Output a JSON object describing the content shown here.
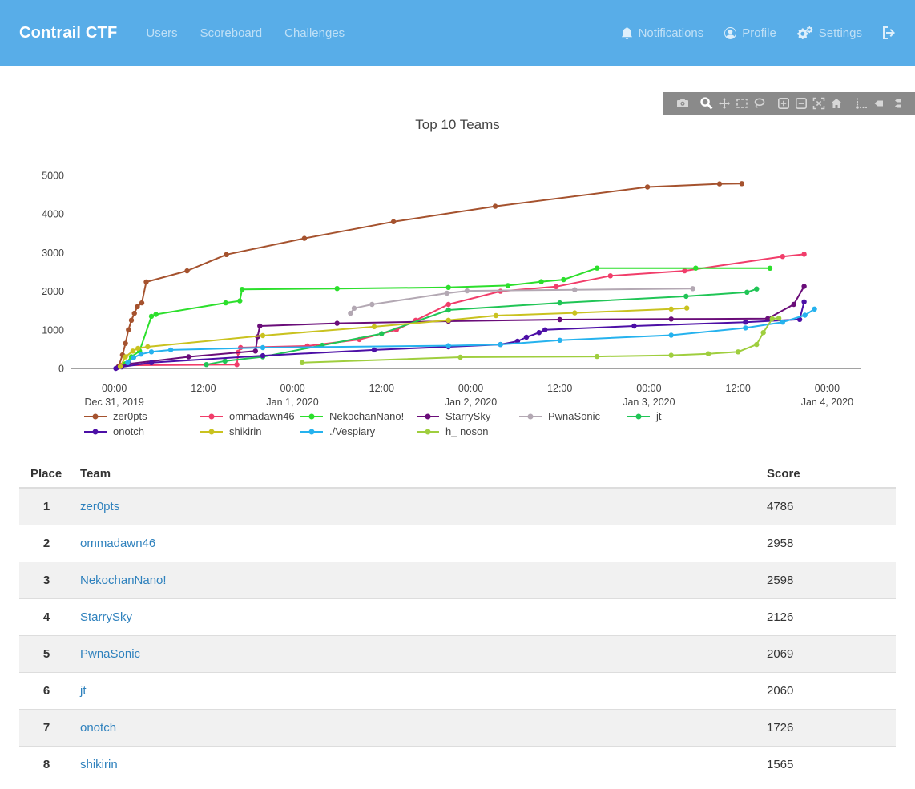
{
  "navbar": {
    "brand": "Contrail CTF",
    "bg_color": "#58ade8",
    "links": [
      {
        "label": "Users"
      },
      {
        "label": "Scoreboard"
      },
      {
        "label": "Challenges"
      }
    ],
    "right_items": [
      {
        "icon": "bell-icon",
        "label": "Notifications"
      },
      {
        "icon": "user-circle-icon",
        "label": "Profile"
      },
      {
        "icon": "gears-icon",
        "label": "Settings"
      },
      {
        "icon": "sign-out-icon",
        "label": ""
      }
    ]
  },
  "modebar": {
    "bg_color": "#8a8a8a",
    "icons": [
      "camera",
      "zoom",
      "pan",
      "box-select",
      "lasso",
      "zoom-in",
      "zoom-out",
      "autoscale",
      "reset-axes",
      "toggle-spikelines",
      "hover-closest",
      "hover-compare"
    ]
  },
  "chart_data": {
    "type": "line",
    "title": "Top 10 Teams",
    "xlabel": "",
    "ylabel": "",
    "x_unit": "hours since Dec 31, 2019 00:00",
    "xlim_hours": [
      -5.9,
      100.6
    ],
    "ylim": [
      0,
      5000
    ],
    "grid": false,
    "legend_position": "bottom",
    "y_ticks": [
      0,
      1000,
      2000,
      3000,
      4000,
      5000
    ],
    "x_ticks": [
      {
        "hour": 0,
        "time": "00:00",
        "date": "Dec 31, 2019"
      },
      {
        "hour": 12,
        "time": "12:00"
      },
      {
        "hour": 24,
        "time": "00:00",
        "date": "Jan 1, 2020"
      },
      {
        "hour": 36,
        "time": "12:00"
      },
      {
        "hour": 48,
        "time": "00:00",
        "date": "Jan 2, 2020"
      },
      {
        "hour": 60,
        "time": "12:00"
      },
      {
        "hour": 72,
        "time": "00:00",
        "date": "Jan 3, 2020"
      },
      {
        "hour": 84,
        "time": "12:00"
      },
      {
        "hour": 96,
        "time": "00:00",
        "date": "Jan 4, 2020"
      }
    ],
    "series": [
      {
        "name": "zer0pts",
        "color": "#a5522e",
        "final_score": 4786,
        "points": [
          [
            0.6,
            60
          ],
          [
            1.1,
            350
          ],
          [
            1.5,
            650
          ],
          [
            1.9,
            1000
          ],
          [
            2.3,
            1250
          ],
          [
            2.7,
            1430
          ],
          [
            3.1,
            1600
          ],
          [
            3.7,
            1700
          ],
          [
            4.3,
            2240
          ],
          [
            9.8,
            2530
          ],
          [
            15.1,
            2950
          ],
          [
            25.6,
            3370
          ],
          [
            37.6,
            3800
          ],
          [
            51.3,
            4200
          ],
          [
            71.8,
            4700
          ],
          [
            81.5,
            4780
          ],
          [
            84.5,
            4786
          ]
        ]
      },
      {
        "name": "ommadawn46",
        "color": "#f13d6a",
        "final_score": 2958,
        "points": [
          [
            1.0,
            80
          ],
          [
            16.5,
            100
          ],
          [
            16.7,
            420
          ],
          [
            17.0,
            540
          ],
          [
            26,
            580
          ],
          [
            33,
            750
          ],
          [
            38,
            1000
          ],
          [
            40.6,
            1250
          ],
          [
            45,
            1660
          ],
          [
            52,
            2000
          ],
          [
            59.5,
            2120
          ],
          [
            66.8,
            2400
          ],
          [
            76.8,
            2530
          ],
          [
            90,
            2900
          ],
          [
            92.9,
            2958
          ]
        ]
      },
      {
        "name": "NekochanNano!",
        "color": "#2cdf2c",
        "final_score": 2598,
        "points": [
          [
            1.5,
            120
          ],
          [
            2.3,
            300
          ],
          [
            3.4,
            450
          ],
          [
            5.0,
            1350
          ],
          [
            5.6,
            1400
          ],
          [
            15.0,
            1700
          ],
          [
            16.9,
            1750
          ],
          [
            17.2,
            2050
          ],
          [
            30,
            2070
          ],
          [
            45,
            2100
          ],
          [
            53,
            2150
          ],
          [
            57.5,
            2250
          ],
          [
            60.5,
            2300
          ],
          [
            65,
            2600
          ],
          [
            78.3,
            2600
          ],
          [
            88.3,
            2598
          ]
        ]
      },
      {
        "name": "StarrySky",
        "color": "#6a0d79",
        "final_score": 2126,
        "points": [
          [
            0.5,
            30
          ],
          [
            2,
            120
          ],
          [
            10,
            300
          ],
          [
            19.0,
            450
          ],
          [
            19.3,
            820
          ],
          [
            19.6,
            1100
          ],
          [
            30,
            1170
          ],
          [
            45,
            1225
          ],
          [
            60,
            1265
          ],
          [
            75,
            1280
          ],
          [
            88,
            1290
          ],
          [
            91.5,
            1660
          ],
          [
            92.9,
            2126
          ]
        ]
      },
      {
        "name": "PwnaSonic",
        "color": "#b3a8b3",
        "final_score": 2069,
        "points": [
          [
            31.8,
            1430
          ],
          [
            32.3,
            1560
          ],
          [
            34.7,
            1660
          ],
          [
            44.8,
            1950
          ],
          [
            47.5,
            2010
          ],
          [
            62,
            2040
          ],
          [
            77.9,
            2069
          ]
        ]
      },
      {
        "name": "jt",
        "color": "#20c556",
        "final_score": 2060,
        "points": [
          [
            12.4,
            100
          ],
          [
            14.9,
            190
          ],
          [
            20,
            300
          ],
          [
            28,
            600
          ],
          [
            36,
            900
          ],
          [
            45,
            1515
          ],
          [
            60,
            1700
          ],
          [
            77,
            1870
          ],
          [
            85.2,
            1975
          ],
          [
            86.5,
            2060
          ]
        ]
      },
      {
        "name": "onotch",
        "color": "#4c0fa6",
        "final_score": 1726,
        "points": [
          [
            0.2,
            0
          ],
          [
            1,
            40
          ],
          [
            5,
            150
          ],
          [
            20,
            330
          ],
          [
            35,
            480
          ],
          [
            45,
            560
          ],
          [
            52,
            620
          ],
          [
            54.3,
            705
          ],
          [
            55.5,
            810
          ],
          [
            57.2,
            930
          ],
          [
            58,
            1000
          ],
          [
            70,
            1100
          ],
          [
            85,
            1200
          ],
          [
            92.3,
            1270
          ],
          [
            92.9,
            1726
          ]
        ]
      },
      {
        "name": "shikirin",
        "color": "#c9c21f",
        "final_score": 1565,
        "points": [
          [
            0.8,
            50
          ],
          [
            1.5,
            300
          ],
          [
            2.5,
            450
          ],
          [
            3.2,
            520
          ],
          [
            4.5,
            560
          ],
          [
            20,
            850
          ],
          [
            35,
            1080
          ],
          [
            45,
            1250
          ],
          [
            51.4,
            1370
          ],
          [
            62,
            1440
          ],
          [
            75,
            1540
          ],
          [
            77.1,
            1565
          ]
        ]
      },
      {
        "name": "./Vespiary",
        "color": "#25b2ee",
        "final_score": 1540,
        "points": [
          [
            1.8,
            150
          ],
          [
            2.6,
            280
          ],
          [
            3.6,
            370
          ],
          [
            5.0,
            430
          ],
          [
            7.6,
            480
          ],
          [
            20,
            540
          ],
          [
            45,
            590
          ],
          [
            52,
            620
          ],
          [
            60,
            730
          ],
          [
            75,
            860
          ],
          [
            85,
            1050
          ],
          [
            90,
            1200
          ],
          [
            93,
            1380
          ],
          [
            94.3,
            1540
          ]
        ]
      },
      {
        "name": "h_ noson",
        "color": "#9fce3e",
        "final_score": 1300,
        "points": [
          [
            25.3,
            150
          ],
          [
            46.6,
            290
          ],
          [
            65,
            310
          ],
          [
            75,
            340
          ],
          [
            80,
            380
          ],
          [
            84,
            430
          ],
          [
            86.5,
            620
          ],
          [
            87.4,
            930
          ],
          [
            88.6,
            1286
          ],
          [
            89.5,
            1300
          ]
        ]
      }
    ]
  },
  "scoreboard_table": {
    "link_color": "#2e81bd",
    "columns": [
      "Place",
      "Team",
      "Score"
    ],
    "rows": [
      {
        "place": "1",
        "team": "zer0pts",
        "score": "4786"
      },
      {
        "place": "2",
        "team": "ommadawn46",
        "score": "2958"
      },
      {
        "place": "3",
        "team": "NekochanNano!",
        "score": "2598"
      },
      {
        "place": "4",
        "team": "StarrySky",
        "score": "2126"
      },
      {
        "place": "5",
        "team": "PwnaSonic",
        "score": "2069"
      },
      {
        "place": "6",
        "team": "jt",
        "score": "2060"
      },
      {
        "place": "7",
        "team": "onotch",
        "score": "1726"
      },
      {
        "place": "8",
        "team": "shikirin",
        "score": "1565"
      }
    ]
  }
}
